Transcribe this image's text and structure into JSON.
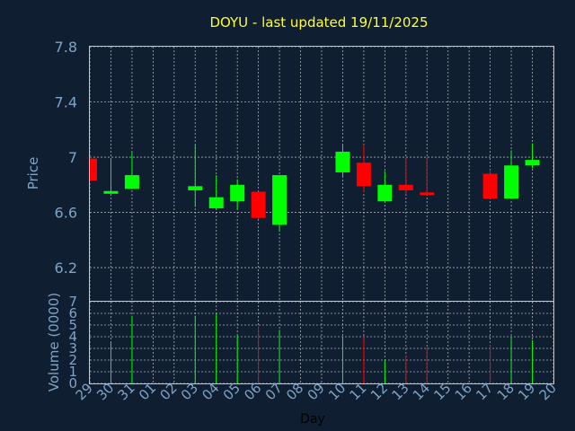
{
  "chart_data": [
    {
      "type": "candlestick",
      "title": "DOYU - last updated 19/11/2025",
      "ylabel": "Price",
      "ylim": [
        5.96,
        7.8
      ],
      "yticks": [
        "7.8",
        "7.4",
        "7",
        "6.6",
        "6.2"
      ],
      "colors": {
        "up": "#00ff00",
        "down": "#ff0000",
        "background": "#0f1e30",
        "text": "#7ea4c8",
        "title": "#ffff33"
      },
      "grid": true,
      "days": [
        "29",
        "30",
        "31",
        "01",
        "02",
        "03",
        "04",
        "05",
        "06",
        "07",
        "08",
        "09",
        "10",
        "11",
        "12",
        "13",
        "14",
        "15",
        "16",
        "17",
        "18",
        "19",
        "20"
      ],
      "candles": [
        {
          "day": "29",
          "open": 6.99,
          "close": 6.83,
          "high": 7.0,
          "low": 6.83,
          "dir": "down"
        },
        {
          "day": "30",
          "open": 6.74,
          "close": 6.75,
          "high": 6.99,
          "low": 6.74,
          "dir": "up"
        },
        {
          "day": "31",
          "open": 6.77,
          "close": 6.87,
          "high": 7.04,
          "low": 6.77,
          "dir": "up"
        },
        {
          "day": "03",
          "open": 6.76,
          "close": 6.79,
          "high": 7.09,
          "low": 6.64,
          "dir": "up"
        },
        {
          "day": "04",
          "open": 6.63,
          "close": 6.71,
          "high": 6.87,
          "low": 6.62,
          "dir": "up"
        },
        {
          "day": "05",
          "open": 6.68,
          "close": 6.8,
          "high": 6.84,
          "low": 6.62,
          "dir": "up"
        },
        {
          "day": "06",
          "open": 6.75,
          "close": 6.56,
          "high": 6.75,
          "low": 6.55,
          "dir": "down"
        },
        {
          "day": "07",
          "open": 6.51,
          "close": 6.87,
          "high": 6.87,
          "low": 6.46,
          "dir": "up"
        },
        {
          "day": "10",
          "open": 6.89,
          "close": 7.04,
          "high": 7.09,
          "low": 6.86,
          "dir": "up"
        },
        {
          "day": "11",
          "open": 6.96,
          "close": 6.79,
          "high": 7.09,
          "low": 6.75,
          "dir": "down"
        },
        {
          "day": "12",
          "open": 6.68,
          "close": 6.8,
          "high": 6.9,
          "low": 6.68,
          "dir": "up"
        },
        {
          "day": "13",
          "open": 6.8,
          "close": 6.76,
          "high": 7.0,
          "low": 6.73,
          "dir": "down"
        },
        {
          "day": "14",
          "open": 6.74,
          "close": 6.73,
          "high": 7.0,
          "low": 6.73,
          "dir": "down"
        },
        {
          "day": "17",
          "open": 6.88,
          "close": 6.7,
          "high": 6.91,
          "low": 6.7,
          "dir": "down"
        },
        {
          "day": "18",
          "open": 6.7,
          "close": 6.94,
          "high": 7.05,
          "low": 6.7,
          "dir": "up"
        },
        {
          "day": "19",
          "open": 6.94,
          "close": 6.98,
          "high": 7.1,
          "low": 6.92,
          "dir": "up"
        }
      ]
    },
    {
      "type": "bar",
      "ylabel": "Volume (0000)",
      "xlabel": "Day",
      "ylim": [
        0,
        7
      ],
      "yticks": [
        "0",
        "1",
        "2",
        "3",
        "4",
        "5",
        "6",
        "7"
      ],
      "grid": true,
      "volumes": [
        {
          "day": "30",
          "value": 3.6,
          "dir": "up"
        },
        {
          "day": "31",
          "value": 5.8,
          "dir": "up"
        },
        {
          "day": "03",
          "value": 5.8,
          "dir": "up"
        },
        {
          "day": "04",
          "value": 6.0,
          "dir": "up"
        },
        {
          "day": "05",
          "value": 4.1,
          "dir": "up"
        },
        {
          "day": "06",
          "value": 4.9,
          "dir": "down"
        },
        {
          "day": "07",
          "value": 4.6,
          "dir": "up"
        },
        {
          "day": "10",
          "value": 4.0,
          "dir": "up"
        },
        {
          "day": "11",
          "value": 3.9,
          "dir": "down"
        },
        {
          "day": "12",
          "value": 2.0,
          "dir": "up"
        },
        {
          "day": "13",
          "value": 2.4,
          "dir": "down"
        },
        {
          "day": "14",
          "value": 3.1,
          "dir": "down"
        },
        {
          "day": "17",
          "value": 3.3,
          "dir": "down"
        },
        {
          "day": "18",
          "value": 4.0,
          "dir": "up"
        },
        {
          "day": "19",
          "value": 3.7,
          "dir": "up"
        }
      ]
    }
  ]
}
